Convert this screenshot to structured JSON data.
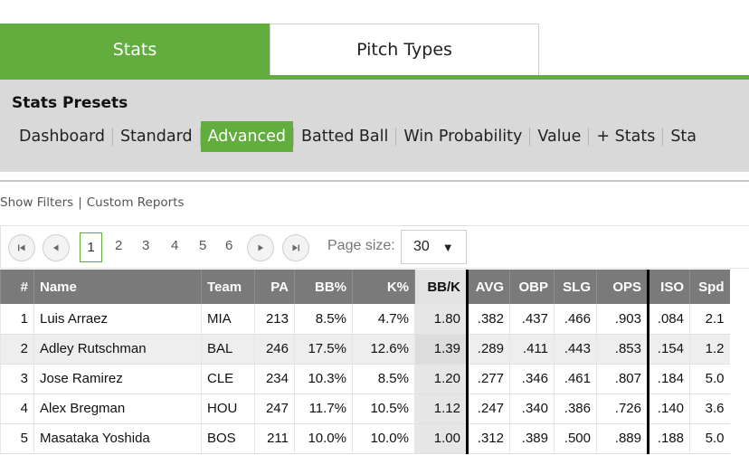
{
  "tabs": [
    {
      "label": "Stats",
      "active": true
    },
    {
      "label": "Pitch Types",
      "active": false
    }
  ],
  "presets": {
    "title": "Stats Presets",
    "items": [
      "Dashboard",
      "Standard",
      "Advanced",
      "Batted Ball",
      "Win Probability",
      "Value",
      "+ Stats",
      "Sta"
    ],
    "active": "Advanced"
  },
  "filters": {
    "show_filters": "Show Filters",
    "separator": "|",
    "custom_reports": "Custom Reports"
  },
  "pager": {
    "first_icon": "first-page-icon",
    "prev_icon": "prev-page-icon",
    "next_icon": "next-page-icon",
    "last_icon": "last-page-icon",
    "pages": [
      "1",
      "2",
      "3",
      "4",
      "5",
      "6"
    ],
    "current_page": "1",
    "page_size_label": "Page size:",
    "page_size_value": "30",
    "page_size_caret": "▼"
  },
  "table": {
    "columns": [
      "#",
      "Name",
      "Team",
      "PA",
      "BB%",
      "K%",
      "BB/K",
      "AVG",
      "OBP",
      "SLG",
      "OPS",
      "ISO",
      "Spd"
    ],
    "sorted_column": "BB/K",
    "rows": [
      [
        "1",
        "Luis Arraez",
        "MIA",
        "213",
        "8.5%",
        "4.7%",
        "1.80",
        ".382",
        ".437",
        ".466",
        ".903",
        ".084",
        "2.1"
      ],
      [
        "2",
        "Adley Rutschman",
        "BAL",
        "246",
        "17.5%",
        "12.6%",
        "1.39",
        ".289",
        ".411",
        ".443",
        ".853",
        ".154",
        "1.2"
      ],
      [
        "3",
        "Jose Ramirez",
        "CLE",
        "234",
        "10.3%",
        "8.5%",
        "1.20",
        ".277",
        ".346",
        ".461",
        ".807",
        ".184",
        "5.0"
      ],
      [
        "4",
        "Alex Bregman",
        "HOU",
        "247",
        "11.7%",
        "10.5%",
        "1.12",
        ".247",
        ".340",
        ".386",
        ".726",
        ".140",
        "3.6"
      ],
      [
        "5",
        "Masataka Yoshida",
        "BOS",
        "211",
        "10.0%",
        "10.0%",
        "1.00",
        ".312",
        ".389",
        ".500",
        ".889",
        ".188",
        "5.0"
      ]
    ]
  },
  "colors": {
    "accent_green": "#63ad3e",
    "header_gray": "#7a7a7a",
    "presets_bg": "#d9d9d9"
  }
}
